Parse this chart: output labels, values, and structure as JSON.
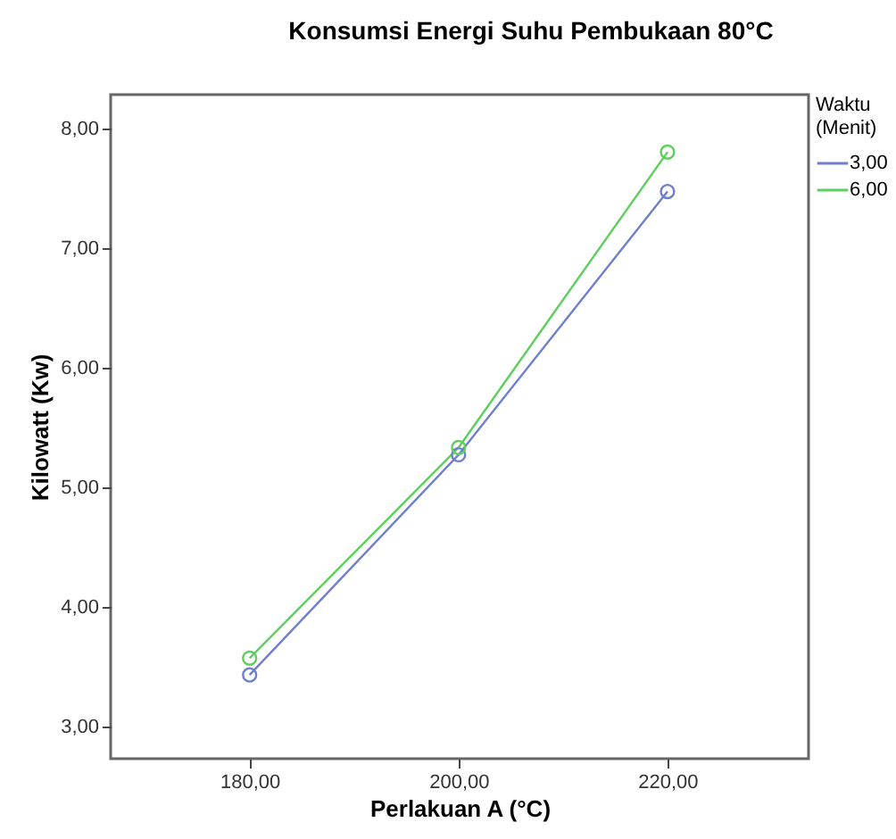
{
  "chart_data": {
    "type": "line",
    "title": "Konsumsi Energi Suhu Pembukaan 80°C",
    "xlabel": "Perlakuan A (°C)",
    "ylabel": "Kilowatt (Kw)",
    "legend_title": "Waktu (Menit)",
    "x": [
      180,
      200,
      220
    ],
    "series": [
      {
        "name": "3,00",
        "color": "#6f7fcf",
        "values": [
          3.43,
          5.27,
          7.47
        ]
      },
      {
        "name": "6,00",
        "color": "#5ccf5c",
        "values": [
          3.57,
          5.33,
          7.8
        ]
      }
    ],
    "xlim": [
      166.7,
      233.5
    ],
    "xticks": [
      {
        "value": 180,
        "label": "180,00"
      },
      {
        "value": 200,
        "label": "200,00"
      },
      {
        "value": 220,
        "label": "220,00"
      }
    ],
    "ylim": [
      2.73,
      8.28
    ],
    "yticks": [
      {
        "value": 3,
        "label": "3,00"
      },
      {
        "value": 4,
        "label": "4,00"
      },
      {
        "value": 5,
        "label": "5,00"
      },
      {
        "value": 6,
        "label": "6,00"
      },
      {
        "value": 7,
        "label": "7,00"
      },
      {
        "value": 8,
        "label": "8,00"
      }
    ],
    "grid": false,
    "legend": "top right",
    "marker": "circle",
    "line_style": "solid"
  }
}
